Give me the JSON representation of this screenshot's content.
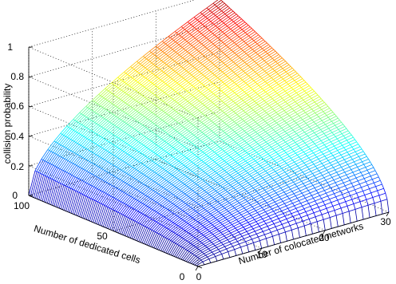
{
  "chart_data": {
    "type": "surface",
    "title": "",
    "xlabel": "Number of colocated networks",
    "ylabel": "Number of dedicated cells",
    "zlabel": "collision probability",
    "x_ticks": [
      "0",
      "10",
      "20",
      "30"
    ],
    "y_ticks": [
      "0",
      "50",
      "100"
    ],
    "z_ticks": [
      "0",
      "0.2",
      "0.4",
      "0.6",
      "0.8",
      "1"
    ],
    "xlim": [
      0,
      30
    ],
    "ylim": [
      0,
      100
    ],
    "zlim": [
      0,
      1
    ],
    "grid": true,
    "colormap": "jet",
    "mesh": {
      "x_steps": 30,
      "y_steps": 100
    },
    "surface_samples": {
      "description_of_axes": "z at (x=networks, y=cells)",
      "points": [
        {
          "x": 0,
          "y": 0,
          "z": 0
        },
        {
          "x": 30,
          "y": 0,
          "z": 0
        },
        {
          "x": 0,
          "y": 100,
          "z": 0
        },
        {
          "x": 30,
          "y": 50,
          "z": 0.45
        },
        {
          "x": 15,
          "y": 100,
          "z": 0.6
        },
        {
          "x": 30,
          "y": 100,
          "z": 0.96
        }
      ]
    }
  }
}
